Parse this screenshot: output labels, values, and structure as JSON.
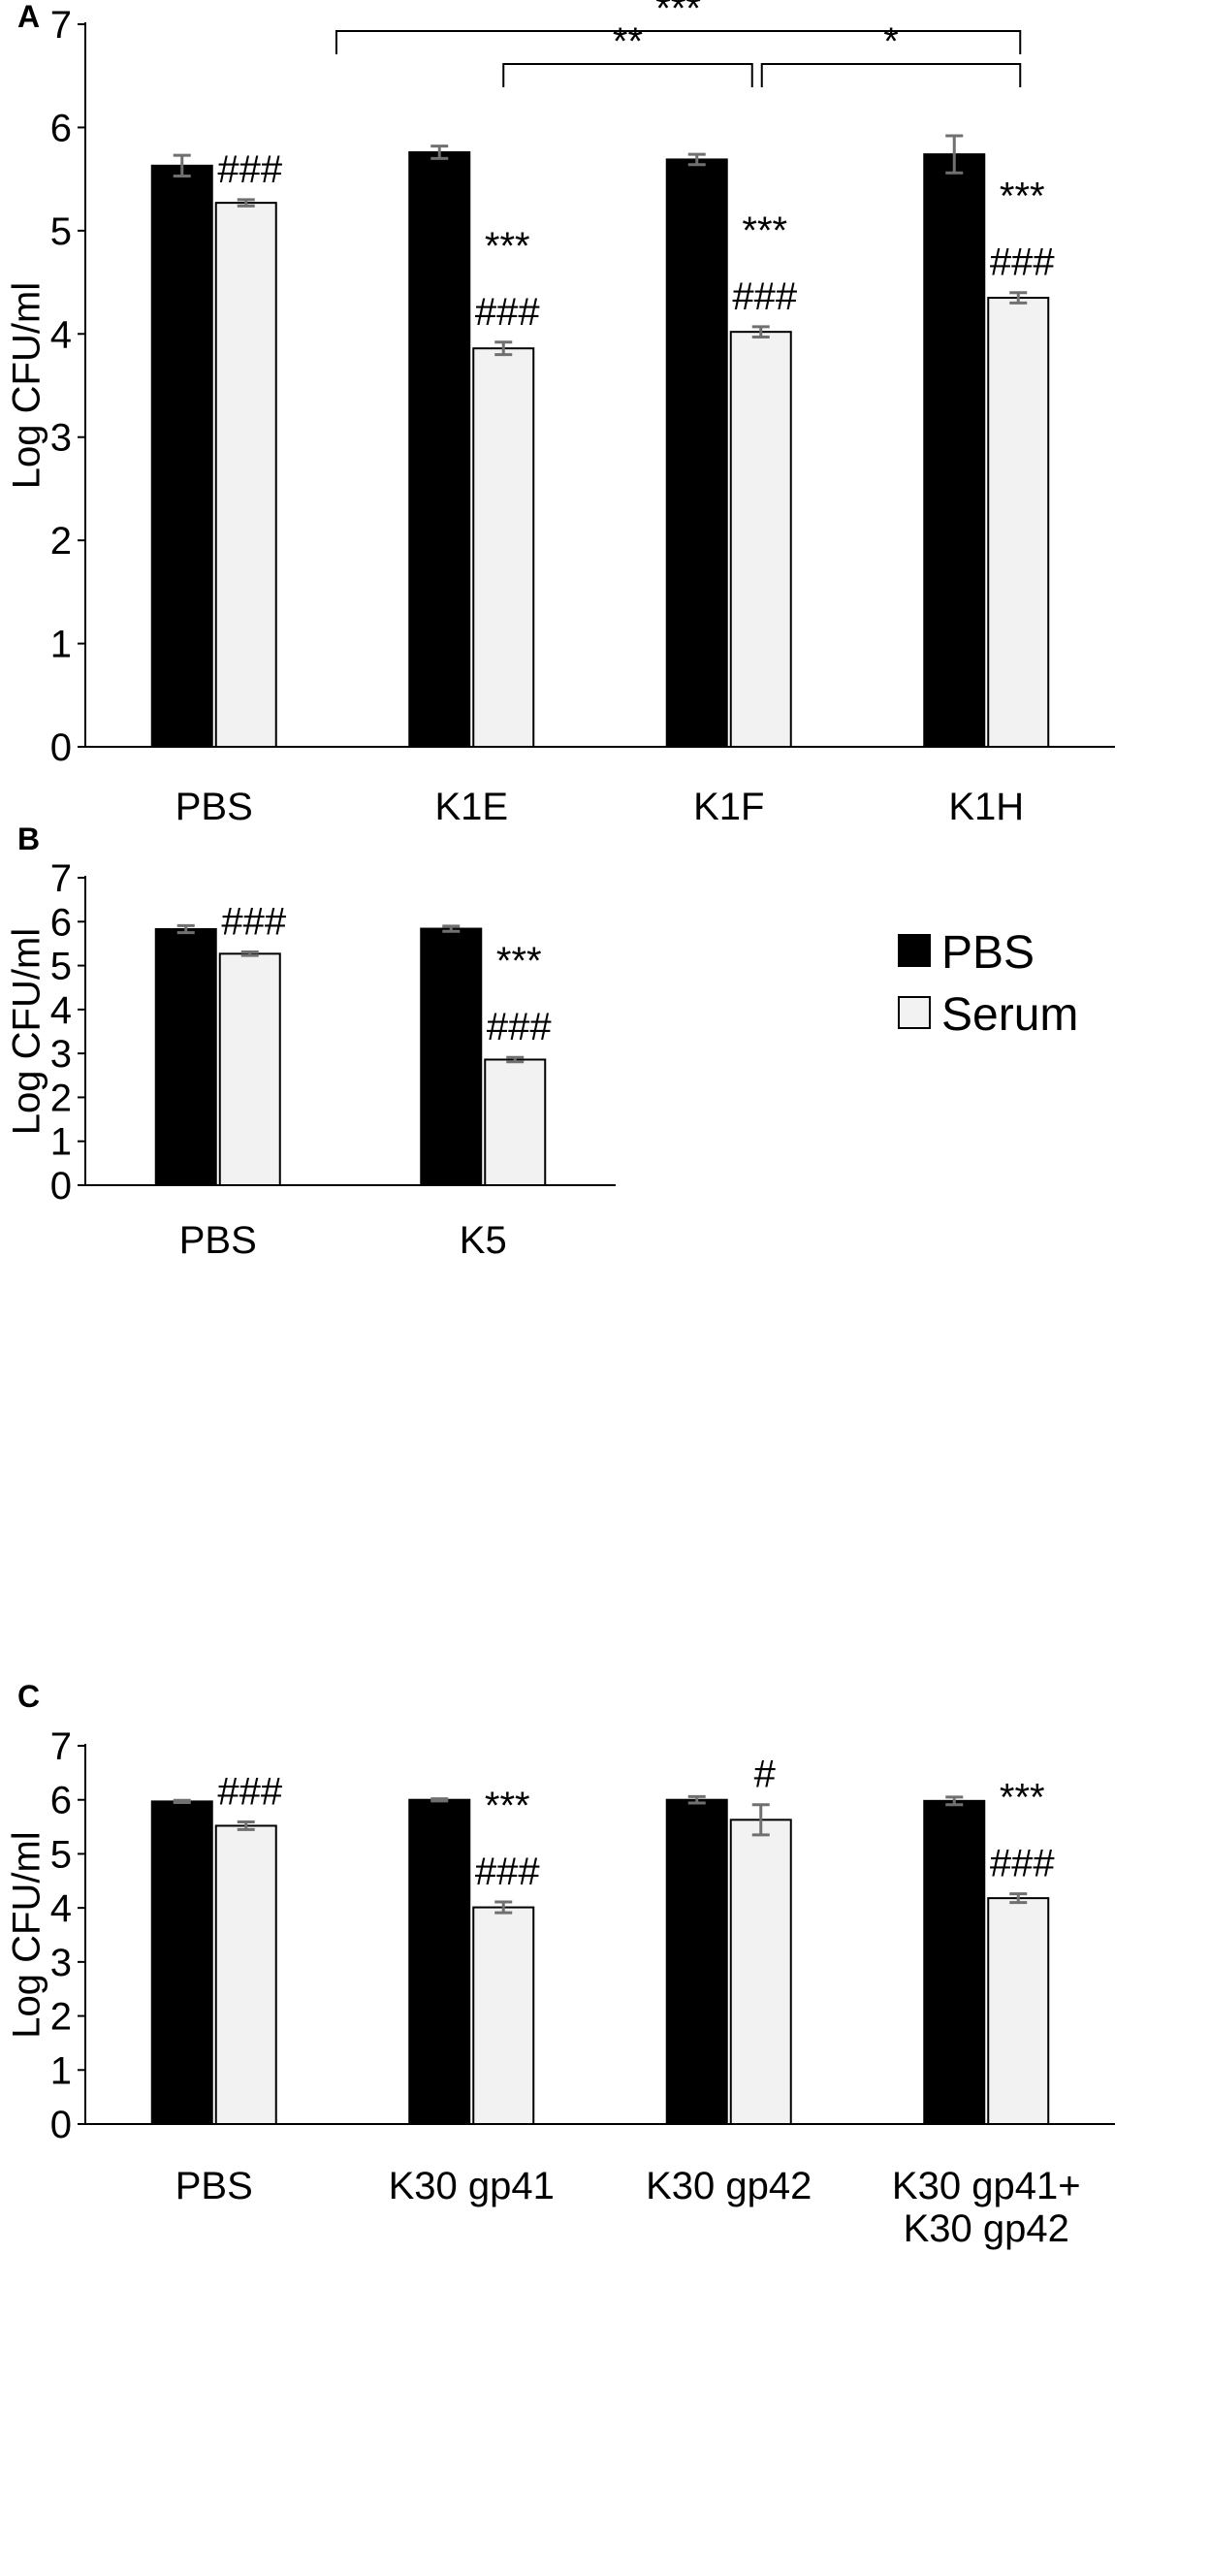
{
  "colors": {
    "pbs": "#000000",
    "serum": "#f2f2f2",
    "error_bar": "#707070"
  },
  "legend": [
    {
      "label": "PBS",
      "color": "#000000"
    },
    {
      "label": "Serum",
      "color": "#f2f2f2"
    }
  ],
  "chart_data": [
    {
      "panel": "A",
      "type": "bar",
      "ylabel": "Log CFU/ml",
      "ylim": [
        0,
        7
      ],
      "yticks": [
        "0",
        "1",
        "2",
        "3",
        "4",
        "5",
        "6",
        "7"
      ],
      "categories": [
        [
          "PBS"
        ],
        [
          "K1E"
        ],
        [
          "K1F"
        ],
        [
          "K1H"
        ]
      ],
      "series": [
        {
          "name": "PBS",
          "values": [
            5.63,
            5.76,
            5.69,
            5.74
          ],
          "errors": [
            0.1,
            0.06,
            0.05,
            0.18
          ]
        },
        {
          "name": "Serum",
          "values": [
            5.27,
            3.86,
            4.02,
            4.35
          ],
          "errors": [
            0.03,
            0.06,
            0.05,
            0.05
          ]
        }
      ],
      "annotations": [
        {
          "cat": 0,
          "lines": [
            "###"
          ]
        },
        {
          "cat": 1,
          "lines": [
            "***",
            "###"
          ]
        },
        {
          "cat": 2,
          "lines": [
            "***",
            "###"
          ]
        },
        {
          "cat": 3,
          "lines": [
            "***",
            "###"
          ]
        }
      ],
      "comparisons": [
        {
          "from": 1,
          "to": 2,
          "label": "**"
        },
        {
          "from": 2,
          "to": 3,
          "label": "*"
        },
        {
          "from": 1,
          "to": 3,
          "label": "***"
        }
      ]
    },
    {
      "panel": "B",
      "type": "bar",
      "ylabel": "Log CFU/ml",
      "ylim": [
        0,
        7
      ],
      "yticks": [
        "0",
        "1",
        "2",
        "3",
        "4",
        "5",
        "6",
        "7"
      ],
      "categories": [
        [
          "PBS"
        ],
        [
          "K5"
        ]
      ],
      "series": [
        {
          "name": "PBS",
          "values": [
            5.83,
            5.84
          ],
          "errors": [
            0.08,
            0.06
          ]
        },
        {
          "name": "Serum",
          "values": [
            5.27,
            2.86
          ],
          "errors": [
            0.04,
            0.05
          ]
        }
      ],
      "annotations": [
        {
          "cat": 0,
          "lines": [
            "###"
          ]
        },
        {
          "cat": 1,
          "lines": [
            "***",
            "###"
          ]
        }
      ],
      "comparisons": []
    },
    {
      "panel": "C",
      "type": "bar",
      "ylabel": "Log CFU/ml",
      "ylim": [
        0,
        7
      ],
      "yticks": [
        "0",
        "1",
        "2",
        "3",
        "4",
        "5",
        "6",
        "7"
      ],
      "categories": [
        [
          "PBS"
        ],
        [
          "K30 gp41"
        ],
        [
          "K30 gp42"
        ],
        [
          "K30 gp41+",
          "K30 gp42"
        ]
      ],
      "series": [
        {
          "name": "PBS",
          "values": [
            5.97,
            6.0,
            6.0,
            5.98
          ],
          "errors": [
            0.02,
            0.02,
            0.06,
            0.07
          ]
        },
        {
          "name": "Serum",
          "values": [
            5.52,
            4.01,
            5.63,
            4.18
          ],
          "errors": [
            0.07,
            0.1,
            0.28,
            0.08
          ]
        }
      ],
      "annotations": [
        {
          "cat": 0,
          "lines": [
            "###"
          ]
        },
        {
          "cat": 1,
          "lines": [
            "***",
            "###"
          ]
        },
        {
          "cat": 2,
          "lines": [
            "#"
          ]
        },
        {
          "cat": 3,
          "lines": [
            "***",
            "###"
          ]
        }
      ],
      "comparisons": []
    }
  ]
}
